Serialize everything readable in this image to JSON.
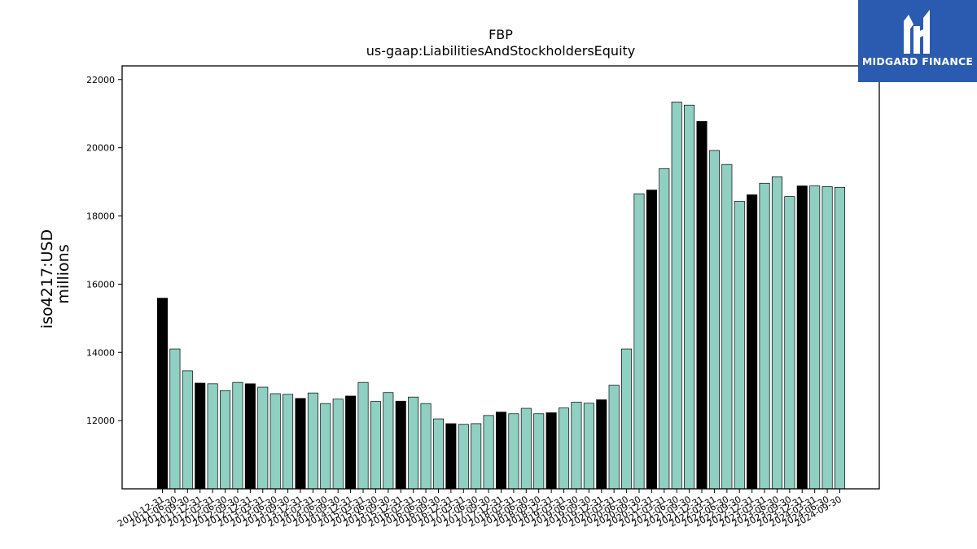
{
  "chart_data": {
    "type": "bar",
    "title": "FBP",
    "subtitle": "us-gaap:LiabilitiesAndStockholdersEquity",
    "ylabel": "iso4217:USD",
    "ylabel2": "millions",
    "xlabel": "",
    "ylim": [
      10000,
      22400
    ],
    "yticks": [
      12000,
      14000,
      16000,
      18000,
      20000,
      22000
    ],
    "grid": false,
    "colors": {
      "annual": "#000000",
      "quarterly": "#8fd0c3",
      "edge": "#000000"
    },
    "categories": [
      "2010-12-31",
      "2011-06-30",
      "2011-09-30",
      "2011-12-31",
      "2012-03-31",
      "2012-06-30",
      "2012-09-30",
      "2012-12-31",
      "2013-03-31",
      "2013-06-30",
      "2013-09-30",
      "2013-12-31",
      "2014-03-31",
      "2014-06-30",
      "2014-09-30",
      "2014-12-31",
      "2015-03-31",
      "2015-06-30",
      "2015-09-30",
      "2015-12-31",
      "2016-03-31",
      "2016-06-30",
      "2016-09-30",
      "2016-12-31",
      "2017-03-31",
      "2017-06-30",
      "2017-09-30",
      "2017-12-31",
      "2018-03-31",
      "2018-06-30",
      "2018-09-30",
      "2018-12-31",
      "2019-03-31",
      "2019-06-30",
      "2019-09-30",
      "2019-12-31",
      "2020-03-31",
      "2020-06-30",
      "2020-09-30",
      "2020-12-31",
      "2021-03-31",
      "2021-06-30",
      "2021-09-30",
      "2021-12-31",
      "2022-03-31",
      "2022-06-30",
      "2022-09-30",
      "2022-12-31",
      "2023-03-31",
      "2023-06-30",
      "2023-09-30",
      "2023-12-31",
      "2024-03-31",
      "2024-06-30",
      "2024-09-30"
    ],
    "values": [
      15590,
      14100,
      13460,
      13100,
      13080,
      12880,
      13120,
      13080,
      12980,
      12790,
      12770,
      12650,
      12810,
      12500,
      12630,
      12720,
      13120,
      12560,
      12820,
      12570,
      12690,
      12500,
      12050,
      11910,
      11890,
      11910,
      12150,
      12250,
      12200,
      12360,
      12200,
      12230,
      12370,
      12540,
      12510,
      12610,
      13040,
      14100,
      18650,
      18760,
      19390,
      21340,
      21250,
      20770,
      19920,
      19510,
      18430,
      18620,
      18960,
      19150,
      18570,
      18880,
      18880,
      18860,
      18840
    ],
    "annual_flags": [
      true,
      false,
      false,
      true,
      false,
      false,
      false,
      true,
      false,
      false,
      false,
      true,
      false,
      false,
      false,
      true,
      false,
      false,
      false,
      true,
      false,
      false,
      false,
      true,
      false,
      false,
      false,
      true,
      false,
      false,
      false,
      true,
      false,
      false,
      false,
      true,
      false,
      false,
      false,
      true,
      false,
      false,
      false,
      true,
      false,
      false,
      false,
      true,
      false,
      false,
      false,
      true,
      false,
      false,
      false
    ]
  },
  "logo": {
    "text": "MIDGARD FINANCE",
    "color": "#2a5bb0"
  }
}
